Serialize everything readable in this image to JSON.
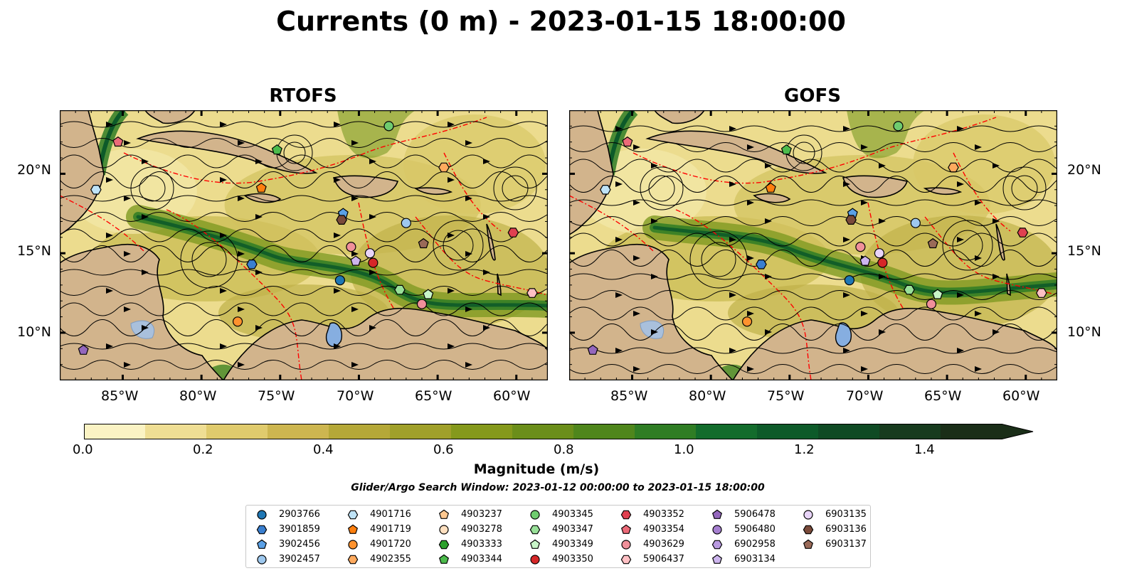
{
  "title": "Currents (0 m) - 2023-01-15 18:00:00",
  "panels": [
    {
      "title": "RTOFS"
    },
    {
      "title": "GOFS"
    }
  ],
  "lat_ticks": [
    "20°N",
    "15°N",
    "10°N"
  ],
  "lon_ticks": [
    "85°W",
    "80°W",
    "75°W",
    "70°W",
    "65°W",
    "60°W"
  ],
  "colorbar": {
    "label": "Magnitude (m/s)",
    "ticks": [
      "0.0",
      "0.2",
      "0.4",
      "0.6",
      "0.8",
      "1.0",
      "1.2",
      "1.4"
    ],
    "colors": [
      "#fbf3c4",
      "#efde94",
      "#e0cb6d",
      "#cdb650",
      "#b5a838",
      "#a0a02a",
      "#85991c",
      "#6b8e1a",
      "#4f861c",
      "#2f7d24",
      "#136c2c",
      "#0d5a29",
      "#0f4a24",
      "#173b1e",
      "#1a2e18"
    ]
  },
  "search_window": "Glider/Argo Search Window: 2023-01-12 00:00:00 to 2023-01-15 18:00:00",
  "legend": [
    {
      "id": "2903766",
      "marker": "circle",
      "color": "#1f77b4"
    },
    {
      "id": "3901859",
      "marker": "hexagon",
      "color": "#3a7fcf"
    },
    {
      "id": "3902456",
      "marker": "pentagon",
      "color": "#5aa0e6"
    },
    {
      "id": "3902457",
      "marker": "circle",
      "color": "#9ec8ee"
    },
    {
      "id": "4901716",
      "marker": "hexagon",
      "color": "#bfe3f7"
    },
    {
      "id": "4901719",
      "marker": "pentagon",
      "color": "#ff7f0e"
    },
    {
      "id": "4901720",
      "marker": "circle",
      "color": "#ff922e"
    },
    {
      "id": "4902355",
      "marker": "hexagon",
      "color": "#ffaa5e"
    },
    {
      "id": "4903237",
      "marker": "pentagon",
      "color": "#ffc890"
    },
    {
      "id": "4903278",
      "marker": "circle",
      "color": "#ffe0c0"
    },
    {
      "id": "4903333",
      "marker": "hexagon",
      "color": "#2ca02c"
    },
    {
      "id": "4903344",
      "marker": "pentagon",
      "color": "#4cbb4c"
    },
    {
      "id": "4903345",
      "marker": "circle",
      "color": "#6fcc6f"
    },
    {
      "id": "4903347",
      "marker": "hexagon",
      "color": "#98e098"
    },
    {
      "id": "4903349",
      "marker": "pentagon",
      "color": "#c8f5c8"
    },
    {
      "id": "4903350",
      "marker": "circle",
      "color": "#d62728"
    },
    {
      "id": "4903352",
      "marker": "hexagon",
      "color": "#e04050"
    },
    {
      "id": "4903354",
      "marker": "pentagon",
      "color": "#ec6a78"
    },
    {
      "id": "4903629",
      "marker": "circle",
      "color": "#f0909a"
    },
    {
      "id": "5906437",
      "marker": "hexagon",
      "color": "#ffc0c4"
    },
    {
      "id": "5906478",
      "marker": "pentagon",
      "color": "#9467bd"
    },
    {
      "id": "5906480",
      "marker": "circle",
      "color": "#a67fd0"
    },
    {
      "id": "6902958",
      "marker": "hexagon",
      "color": "#b99ae0"
    },
    {
      "id": "6903134",
      "marker": "pentagon",
      "color": "#cdb5ee"
    },
    {
      "id": "6903135",
      "marker": "circle",
      "color": "#e8d4f8"
    },
    {
      "id": "6903136",
      "marker": "hexagon",
      "color": "#7a4a3a"
    },
    {
      "id": "6903137",
      "marker": "pentagon",
      "color": "#9a6a58"
    }
  ],
  "floats_rtofs": [
    {
      "id": "4903354",
      "lon": -85.3,
      "lat": 22.0
    },
    {
      "id": "4903344",
      "lon": -75.2,
      "lat": 21.5
    },
    {
      "id": "4903345",
      "lon": -68.1,
      "lat": 23.0
    },
    {
      "id": "4902355",
      "lon": -64.6,
      "lat": 20.4
    },
    {
      "id": "4901716",
      "lon": -86.7,
      "lat": 19.0
    },
    {
      "id": "4901719",
      "lon": -76.2,
      "lat": 19.1
    },
    {
      "id": "3902456",
      "lon": -71.0,
      "lat": 17.5
    },
    {
      "id": "6903136",
      "lon": -71.1,
      "lat": 17.1
    },
    {
      "id": "3902457",
      "lon": -67.0,
      "lat": 16.9
    },
    {
      "id": "4903352",
      "lon": -60.2,
      "lat": 16.3
    },
    {
      "id": "6903137",
      "lon": -65.9,
      "lat": 15.6
    },
    {
      "id": "4903629",
      "lon": -70.5,
      "lat": 15.4
    },
    {
      "id": "6903135",
      "lon": -69.3,
      "lat": 15.0
    },
    {
      "id": "6903134",
      "lon": -70.2,
      "lat": 14.5
    },
    {
      "id": "4903350",
      "lon": -69.1,
      "lat": 14.4
    },
    {
      "id": "3901859",
      "lon": -76.8,
      "lat": 14.3
    },
    {
      "id": "2903766",
      "lon": -71.2,
      "lat": 13.3
    },
    {
      "id": "4903347",
      "lon": -67.4,
      "lat": 12.7
    },
    {
      "id": "4903349",
      "lon": -65.6,
      "lat": 12.4
    },
    {
      "id": "5906437",
      "lon": -59.0,
      "lat": 12.5
    },
    {
      "id": "4903629",
      "lon": -66.0,
      "lat": 11.8
    },
    {
      "id": "4901720",
      "lon": -77.7,
      "lat": 10.7
    },
    {
      "id": "5906478",
      "lon": -87.5,
      "lat": 8.9
    }
  ],
  "floats_gofs": [
    {
      "id": "4903354",
      "lon": -85.3,
      "lat": 22.0
    },
    {
      "id": "4903344",
      "lon": -75.2,
      "lat": 21.5
    },
    {
      "id": "4903345",
      "lon": -68.1,
      "lat": 23.0
    },
    {
      "id": "4902355",
      "lon": -64.6,
      "lat": 20.4
    },
    {
      "id": "4901716",
      "lon": -86.7,
      "lat": 19.0
    },
    {
      "id": "4901719",
      "lon": -76.2,
      "lat": 19.1
    },
    {
      "id": "3902456",
      "lon": -71.0,
      "lat": 17.5
    },
    {
      "id": "6903136",
      "lon": -71.1,
      "lat": 17.1
    },
    {
      "id": "3902457",
      "lon": -67.0,
      "lat": 16.9
    },
    {
      "id": "4903352",
      "lon": -60.2,
      "lat": 16.3
    },
    {
      "id": "6903137",
      "lon": -65.9,
      "lat": 15.6
    },
    {
      "id": "4903629",
      "lon": -70.5,
      "lat": 15.4
    },
    {
      "id": "6903135",
      "lon": -69.3,
      "lat": 15.0
    },
    {
      "id": "6903134",
      "lon": -70.2,
      "lat": 14.5
    },
    {
      "id": "4903350",
      "lon": -69.1,
      "lat": 14.4
    },
    {
      "id": "3901859",
      "lon": -76.8,
      "lat": 14.3
    },
    {
      "id": "2903766",
      "lon": -71.2,
      "lat": 13.3
    },
    {
      "id": "4903347",
      "lon": -67.4,
      "lat": 12.7
    },
    {
      "id": "4903349",
      "lon": -65.6,
      "lat": 12.4
    },
    {
      "id": "5906437",
      "lon": -59.0,
      "lat": 12.5
    },
    {
      "id": "4903629",
      "lon": -66.0,
      "lat": 11.8
    },
    {
      "id": "4901720",
      "lon": -77.7,
      "lat": 10.7
    },
    {
      "id": "5906478",
      "lon": -87.5,
      "lat": 8.9
    }
  ]
}
